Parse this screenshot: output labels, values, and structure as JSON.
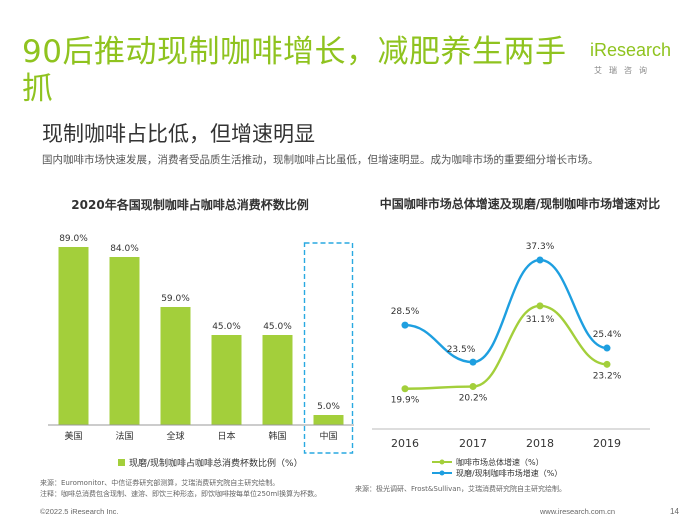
{
  "slide": {
    "title": "90后推动现制咖啡增长，减肥养生两手抓",
    "subtitle": "现制咖啡占比低，但增速明显",
    "lead": "国内咖啡市场快速发展，消费者受品质生活推动，现制咖啡占比虽低，但增速明显。成为咖啡市场的重要细分增长市场。",
    "logo_i": "i",
    "logo_text": "Research",
    "logo_sub": "艾瑞咨询",
    "source_left_1": "来源：Euromonitor、中信证券研究部测算，艾瑞消费研究院自主研究绘制。",
    "source_left_2": "注释：咖啡总消费包含现制、速溶、即饮三种形态，即饮咖啡按每单位250ml换算为杯数。",
    "source_right": "来源：极光调研、Frost&Sullivan，艾瑞消费研究院自主研究绘制。",
    "footer_left": "©2022.5 iResearch Inc.",
    "footer_right": "www.iresearch.com.cn",
    "page_number": "14"
  },
  "chart_data": [
    {
      "type": "bar",
      "title": "2020年各国现制咖啡占咖啡总消费杯数比例",
      "categories": [
        "美国",
        "法国",
        "全球",
        "日本",
        "韩国",
        "中国"
      ],
      "series": [
        {
          "name": "现磨/现制咖啡占咖啡总消费杯数比例（%）",
          "values": [
            89.0,
            84.0,
            59.0,
            45.0,
            45.0,
            5.0
          ],
          "labels": [
            "89.0%",
            "84.0%",
            "59.0%",
            "45.0%",
            "45.0%",
            "5.0%"
          ]
        }
      ],
      "highlight": "中国",
      "ylim": [
        0,
        100
      ],
      "color": "#a3cf3b",
      "legend": "bottom"
    },
    {
      "type": "line",
      "title": "中国咖啡市场总体增速及现磨/现制咖啡市场增速对比",
      "x": [
        "2016",
        "2017",
        "2018",
        "2019"
      ],
      "series": [
        {
          "name": "咖啡市场总体增速（%）",
          "values": [
            19.9,
            20.2,
            31.1,
            23.2
          ],
          "labels": [
            "19.9%",
            "20.2%",
            "31.1%",
            "23.2%"
          ],
          "color": "#a3cf3b"
        },
        {
          "name": "现磨/现制咖啡市场增速（%）",
          "values": [
            28.5,
            23.5,
            37.3,
            25.4
          ],
          "labels": [
            "28.5%",
            "23.5%",
            "37.3%",
            "25.4%"
          ],
          "color": "#1e9fe0"
        }
      ],
      "ylim": [
        15,
        40
      ],
      "legend": "bottom"
    }
  ]
}
